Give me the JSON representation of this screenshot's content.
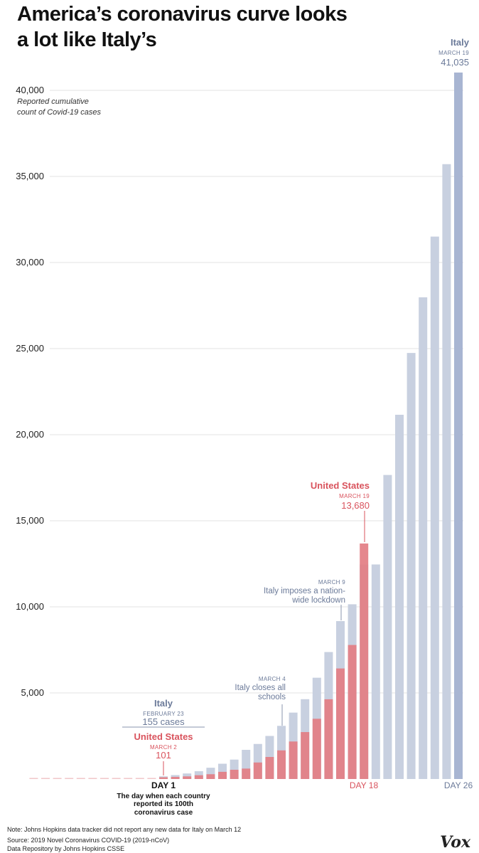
{
  "title_line1": "America’s coronavirus curve looks",
  "title_line2": "a lot like Italy’s",
  "colors": {
    "italy": "#c8d0e0",
    "italy_last": "#a8b5d2",
    "us": "#e37d83",
    "italy_text": "#6b7a99",
    "us_text": "#d9535d"
  },
  "chart_data": {
    "type": "bar",
    "ylabel_line1": "Reported cumulative",
    "ylabel_line2": "count of Covid-19 cases",
    "ylim": [
      0,
      42000
    ],
    "yticks": [
      "5,000",
      "10,000",
      "15,000",
      "20,000",
      "25,000",
      "30,000",
      "35,000",
      "40,000"
    ],
    "ytick_values": [
      5000,
      10000,
      15000,
      20000,
      25000,
      30000,
      35000,
      40000
    ],
    "grid": true,
    "x_days": [
      -10,
      -9,
      -8,
      -7,
      -6,
      -5,
      -4,
      -3,
      -2,
      -1,
      0,
      1,
      2,
      3,
      4,
      5,
      6,
      7,
      8,
      9,
      10,
      11,
      12,
      13,
      14,
      15,
      16,
      17,
      18,
      19,
      20,
      21,
      22,
      23,
      24,
      25,
      26
    ],
    "x_labels": {
      "day1": "DAY 1",
      "day18": "DAY 18",
      "day26": "DAY 26"
    },
    "series": [
      {
        "name": "Italy",
        "values": [
          3,
          3,
          3,
          3,
          3,
          3,
          3,
          3,
          3,
          20,
          62,
          155,
          229,
          322,
          453,
          655,
          888,
          1128,
          1694,
          2036,
          2502,
          3089,
          3858,
          4636,
          5883,
          7375,
          9172,
          10149,
          12462,
          12462,
          17660,
          21157,
          24747,
          27980,
          31506,
          35713,
          41035
        ]
      },
      {
        "name": "United States",
        "values": [
          13,
          15,
          15,
          15,
          15,
          15,
          15,
          16,
          16,
          24,
          30,
          101,
          122,
          153,
          221,
          278,
          417,
          537,
          605,
          959,
          1281,
          1663,
          2179,
          2726,
          3499,
          4632,
          6421,
          7786,
          13680
        ]
      }
    ]
  },
  "annotations": {
    "italy_end": {
      "name": "Italy",
      "date": "MARCH 19",
      "value": "41,035"
    },
    "us_end": {
      "name": "United States",
      "date": "MARCH 19",
      "value": "13,680"
    },
    "italy_start": {
      "name": "Italy",
      "date": "FEBRUARY 23",
      "value": "155 cases"
    },
    "us_start": {
      "name": "United States",
      "date": "MARCH 2",
      "value": "101"
    },
    "lockdown": {
      "date": "MARCH 9",
      "line1": "Italy imposes a nation-",
      "line2": "wide lockdown"
    },
    "schools": {
      "date": "MARCH 4",
      "line1": "Italy closes all",
      "line2": "schools"
    },
    "day1_desc_line1": "The day when each country",
    "day1_desc_line2": "reported its 100th",
    "day1_desc_line3": "coronavirus case"
  },
  "footer": {
    "note": "Note: Johns Hopkins data tracker did not report any new data for Italy on March 12",
    "source1": "Source: 2019 Novel Coronavirus COVID-19 (2019-nCoV)",
    "source2": "Data Repository by Johns Hopkins CSSE",
    "logo": "Vox"
  }
}
